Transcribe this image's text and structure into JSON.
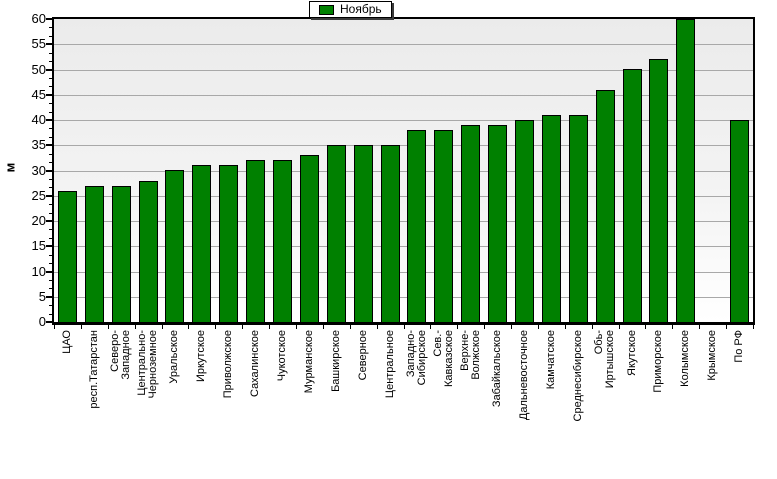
{
  "legend": {
    "label": "Ноябрь",
    "swatch_color": "#008000"
  },
  "y_axis": {
    "label": "м",
    "min": 0,
    "max": 60,
    "tick_step": 5,
    "tick_labels": [
      "0",
      "5",
      "10",
      "15",
      "20",
      "25",
      "30",
      "35",
      "40",
      "45",
      "50",
      "55",
      "60"
    ]
  },
  "chart_data": {
    "type": "bar",
    "title": "",
    "legend_position": "top-center",
    "grid": "horizontal",
    "ylabel": "м",
    "ylim": [
      0,
      60
    ],
    "ytick_step": 5,
    "gridline_color": "#a8a8a8",
    "plot_background": [
      "#ebebeb",
      "#ffffff"
    ],
    "bar_border_color": "#000000",
    "categories": [
      "ЦАО",
      "респ.Татарстан",
      "Северо-Западное",
      "Центрально-Черноземное",
      "Уральское",
      "Иркутское",
      "Приволжское",
      "Сахалинское",
      "Чукотское",
      "Мурманское",
      "Башкирское",
      "Северное",
      "Центральное",
      "Западно-Сибирское",
      "Сев.-Кавказское",
      "Верхне-Волжское",
      "Забайкальское",
      "Дальневосточное",
      "Камчатское",
      "Среднесибирское",
      "Обь-Иртышское",
      "Якутское",
      "Приморское",
      "Колымское",
      "Крымское",
      "По РФ"
    ],
    "label_lines": [
      [
        "ЦАО"
      ],
      [
        "респ.Татарстан"
      ],
      [
        "Северо-",
        "Западное"
      ],
      [
        "Центрально-",
        "Черноземное"
      ],
      [
        "Уральское"
      ],
      [
        "Иркутское"
      ],
      [
        "Приволжское"
      ],
      [
        "Сахалинское"
      ],
      [
        "Чукотское"
      ],
      [
        "Мурманское"
      ],
      [
        "Башкирское"
      ],
      [
        "Северное"
      ],
      [
        "Центральное"
      ],
      [
        "Западно-",
        "Сибирское"
      ],
      [
        "Сев.-",
        "Кавказское"
      ],
      [
        "Верхне-",
        "Волжское"
      ],
      [
        "Забайкальское"
      ],
      [
        "Дальневосточное"
      ],
      [
        "Камчатское"
      ],
      [
        "Среднесибирское"
      ],
      [
        "Обь-",
        "Иртышское"
      ],
      [
        "Якутское"
      ],
      [
        "Приморское"
      ],
      [
        "Колымское"
      ],
      [
        "Крымское"
      ],
      [
        "По РФ"
      ]
    ],
    "series": [
      {
        "name": "Ноябрь",
        "color": "#008000",
        "values": [
          26,
          27,
          27,
          28,
          30,
          31,
          31,
          32,
          32,
          33,
          35,
          35,
          35,
          38,
          38,
          39,
          39,
          40,
          41,
          41,
          46,
          50,
          52,
          60,
          0,
          40
        ]
      }
    ]
  }
}
